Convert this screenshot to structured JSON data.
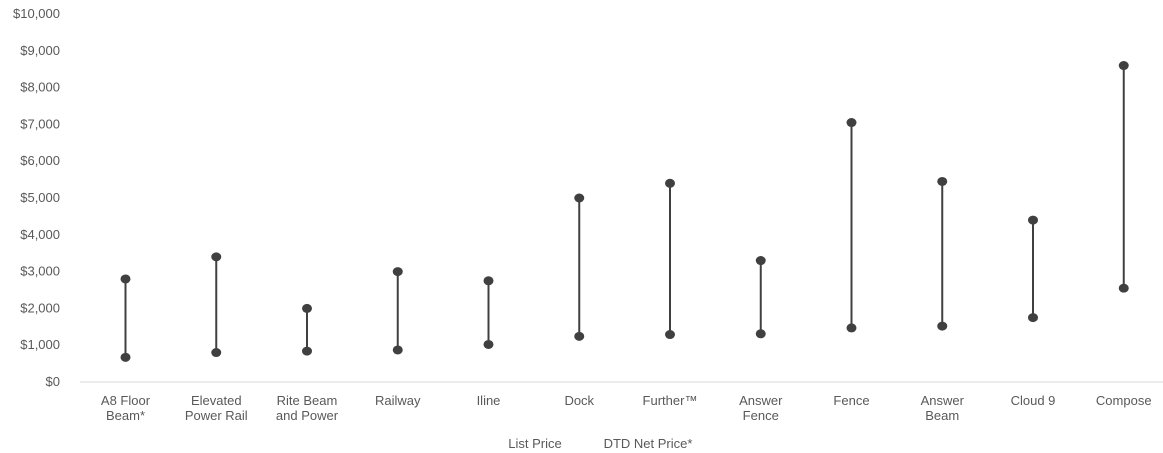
{
  "chart_data": {
    "type": "high-low line chart",
    "title": "",
    "xlabel": "",
    "ylabel": "",
    "ylim": [
      0,
      10000
    ],
    "y_ticks": [
      "$0",
      "$1,000",
      "$2,000",
      "$3,000",
      "$4,000",
      "$5,000",
      "$6,000",
      "$7,000",
      "$8,000",
      "$9,000",
      "$10,000"
    ],
    "y_tick_values": [
      0,
      1000,
      2000,
      3000,
      4000,
      5000,
      6000,
      7000,
      8000,
      9000,
      10000
    ],
    "categories": [
      [
        "A8 Floor",
        "Beam*"
      ],
      [
        "Elevated",
        "Power Rail"
      ],
      [
        "Rite Beam",
        "and Power"
      ],
      [
        "Railway"
      ],
      [
        "Iline"
      ],
      [
        "Dock"
      ],
      [
        "Further™"
      ],
      [
        "Answer",
        "Fence"
      ],
      [
        "Fence"
      ],
      [
        "Answer",
        "Beam"
      ],
      [
        "Cloud 9"
      ],
      [
        "Compose"
      ]
    ],
    "series": [
      {
        "name": "List Price",
        "values": [
          2800,
          3400,
          2000,
          3000,
          2750,
          5000,
          5400,
          3300,
          7050,
          5450,
          4400,
          8600
        ]
      },
      {
        "name": "DTD Net Price*",
        "values": [
          670,
          800,
          840,
          870,
          1020,
          1240,
          1290,
          1310,
          1470,
          1520,
          1750,
          2550
        ]
      }
    ],
    "grid": false,
    "legend_position": "bottom",
    "colors": {
      "line": "#404040",
      "marker": "#404040",
      "axis": "#d9d9d9",
      "text": "#595959"
    }
  }
}
